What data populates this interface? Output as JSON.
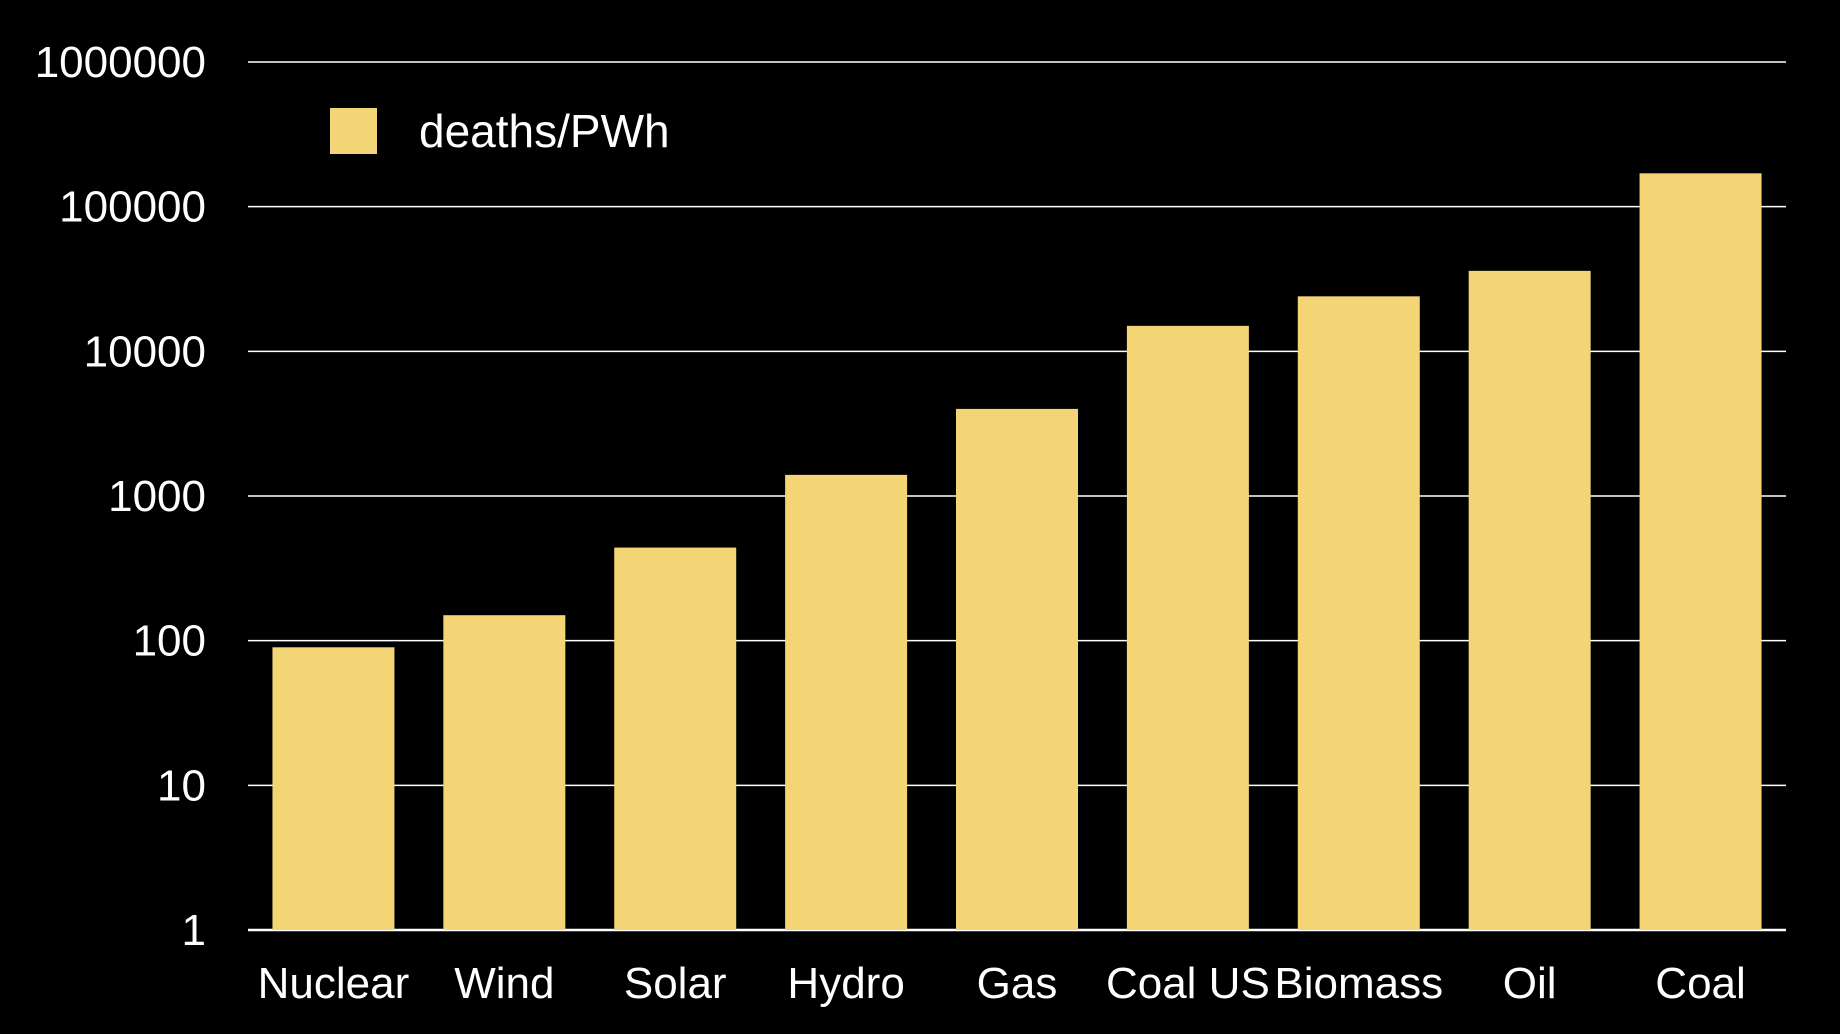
{
  "chart_data": {
    "type": "bar",
    "title": "",
    "xlabel": "",
    "ylabel": "",
    "scale": "log",
    "ylim": [
      1,
      1000000
    ],
    "yticks": [
      "1",
      "10",
      "100",
      "1000",
      "10000",
      "100000",
      "1000000"
    ],
    "ytick_values": [
      1,
      10,
      100,
      1000,
      10000,
      100000,
      1000000
    ],
    "grid": true,
    "legend_position": "top-left",
    "categories": [
      "Nuclear",
      "Wind",
      "Solar",
      "Hydro",
      "Gas",
      "Coal US",
      "Biomass",
      "Oil",
      "Coal"
    ],
    "series": [
      {
        "name": "deaths/PWh",
        "color": "#f3d576",
        "values": [
          90,
          150,
          440,
          1400,
          4000,
          15000,
          24000,
          36000,
          170000
        ]
      }
    ]
  },
  "colors": {
    "background": "#000000",
    "bar": "#f3d576",
    "grid": "#ffffff",
    "text": "#ffffff"
  }
}
